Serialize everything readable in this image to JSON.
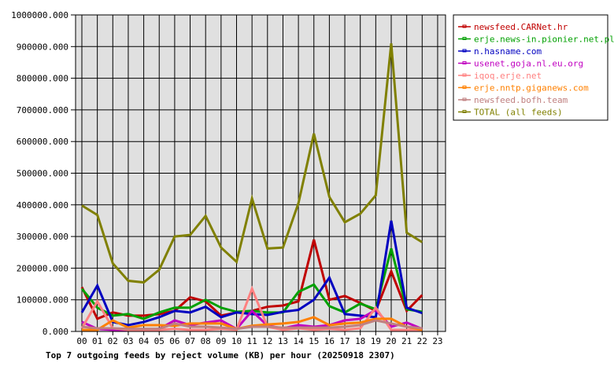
{
  "chart_data": {
    "type": "line",
    "title": "Top 7 outgoing feeds by reject volume (KB) per hour (20250918 2307)",
    "xlabel": "",
    "ylabel": "",
    "ylim": [
      0,
      1000000
    ],
    "grid": true,
    "legend_position": "right",
    "x": [
      "00",
      "01",
      "02",
      "03",
      "04",
      "05",
      "06",
      "07",
      "08",
      "09",
      "10",
      "11",
      "12",
      "13",
      "14",
      "15",
      "16",
      "17",
      "18",
      "19",
      "20",
      "21",
      "22",
      "23"
    ],
    "y_ticks": [
      "0.000",
      "100000.000",
      "200000.000",
      "300000.000",
      "400000.000",
      "500000.000",
      "600000.000",
      "700000.000",
      "800000.000",
      "900000.000",
      "1000000.000"
    ],
    "series": [
      {
        "name": "newsfeed.CARNet.hr",
        "color": "#c00000",
        "values": [
          140000,
          40000,
          60000,
          50000,
          50000,
          55000,
          65000,
          108000,
          95000,
          50000,
          60000,
          65000,
          78000,
          82000,
          95000,
          290000,
          100000,
          112000,
          90000,
          65000,
          190000,
          65000,
          115000
        ]
      },
      {
        "name": "erje.news-in.pionier.net.pl",
        "color": "#00a000",
        "values": [
          135000,
          75000,
          50000,
          55000,
          40000,
          60000,
          75000,
          75000,
          100000,
          75000,
          62000,
          65000,
          60000,
          60000,
          125000,
          148000,
          80000,
          60000,
          88000,
          70000,
          262000,
          70000,
          62000
        ]
      },
      {
        "name": "n.hasname.com",
        "color": "#0000c0",
        "values": [
          60000,
          145000,
          30000,
          20000,
          30000,
          45000,
          65000,
          60000,
          78000,
          45000,
          60000,
          55000,
          52000,
          62000,
          68000,
          100000,
          170000,
          55000,
          50000,
          45000,
          350000,
          75000,
          58000
        ]
      },
      {
        "name": "usenet.goja.nl.eu.org",
        "color": "#c000c0",
        "values": [
          30000,
          8000,
          5000,
          5000,
          5000,
          8000,
          35000,
          20000,
          28000,
          35000,
          8000,
          65000,
          18000,
          10000,
          20000,
          15000,
          20000,
          35000,
          40000,
          68000,
          15000,
          28000,
          8000
        ]
      },
      {
        "name": "iqoq.erje.net",
        "color": "#ff8080",
        "values": [
          10000,
          95000,
          10000,
          5000,
          5000,
          5000,
          8000,
          5000,
          5000,
          8000,
          5000,
          135000,
          15000,
          5000,
          10000,
          5000,
          8000,
          5000,
          10000,
          75000,
          5000,
          5000,
          5000
        ]
      },
      {
        "name": "erje.nntp.giganews.com",
        "color": "#ff8000",
        "values": [
          5000,
          5000,
          35000,
          12000,
          20000,
          20000,
          18000,
          25000,
          25000,
          25000,
          8000,
          18000,
          22000,
          25000,
          30000,
          45000,
          20000,
          25000,
          28000,
          40000,
          40000,
          15000,
          5000
        ]
      },
      {
        "name": "newsfeed.bofh.team",
        "color": "#c08080",
        "values": [
          15000,
          10000,
          10000,
          8000,
          8000,
          8000,
          25000,
          15000,
          15000,
          12000,
          8000,
          15000,
          15000,
          12000,
          12000,
          12000,
          12000,
          15000,
          20000,
          35000,
          25000,
          15000,
          10000
        ]
      },
      {
        "name": "TOTAL (all feeds)",
        "color": "#808000",
        "values": [
          398000,
          368000,
          215000,
          160000,
          155000,
          195000,
          300000,
          305000,
          365000,
          265000,
          220000,
          420000,
          262000,
          265000,
          405000,
          625000,
          425000,
          345000,
          372000,
          430000,
          910000,
          312000,
          282000
        ]
      }
    ]
  }
}
